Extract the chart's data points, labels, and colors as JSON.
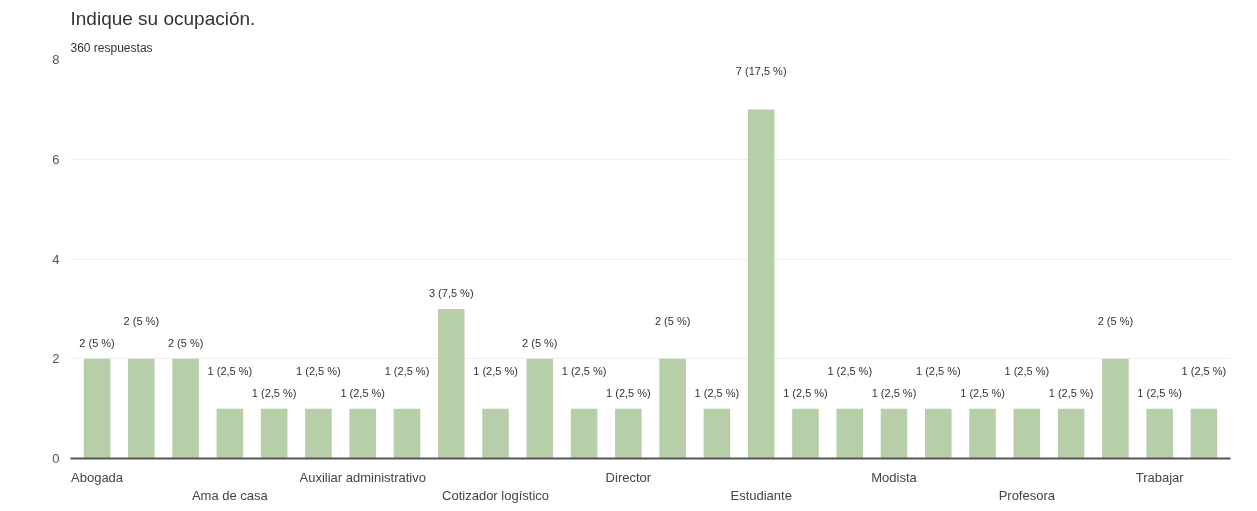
{
  "chart_data": {
    "type": "bar",
    "title": "Indique su ocupación.",
    "subtitle": "360 respuestas",
    "categories": [
      "Abogada",
      null,
      null,
      "Ama de casa",
      null,
      null,
      "Auxiliar administrativo",
      null,
      null,
      "Cotizador logístico",
      null,
      null,
      "Director",
      null,
      null,
      "Estudiante",
      null,
      null,
      "Modista",
      null,
      null,
      "Profesora",
      null,
      null,
      "Trabajar",
      null
    ],
    "values": [
      2,
      2,
      2,
      1,
      1,
      1,
      1,
      1,
      3,
      1,
      2,
      1,
      1,
      2,
      1,
      7,
      1,
      1,
      1,
      1,
      1,
      1,
      1,
      2,
      1,
      1
    ],
    "value_labels": [
      "2 (5 %)",
      "2 (5 %)",
      "2 (5 %)",
      "1 (2,5 %)",
      "1 (2,5 %)",
      "1 (2,5 %)",
      "1 (2,5 %)",
      "1 (2,5 %)",
      "3 (7,5 %)",
      "1 (2,5 %)",
      "2 (5 %)",
      "1 (2,5 %)",
      "1 (2,5 %)",
      "2 (5 %)",
      "1 (2,5 %)",
      "7 (17,5 %)",
      "1 (2,5 %)",
      "1 (2,5 %)",
      "1 (2,5 %)",
      "1 (2,5 %)",
      "1 (2,5 %)",
      "1 (2,5 %)",
      "1 (2,5 %)",
      "2 (5 %)",
      "1 (2,5 %)",
      "1 (2,5 %)"
    ],
    "color": "#b7cfa9",
    "ylim": [
      0,
      8
    ],
    "yticks": [
      0,
      2,
      4,
      6,
      8
    ],
    "grid": "y"
  }
}
